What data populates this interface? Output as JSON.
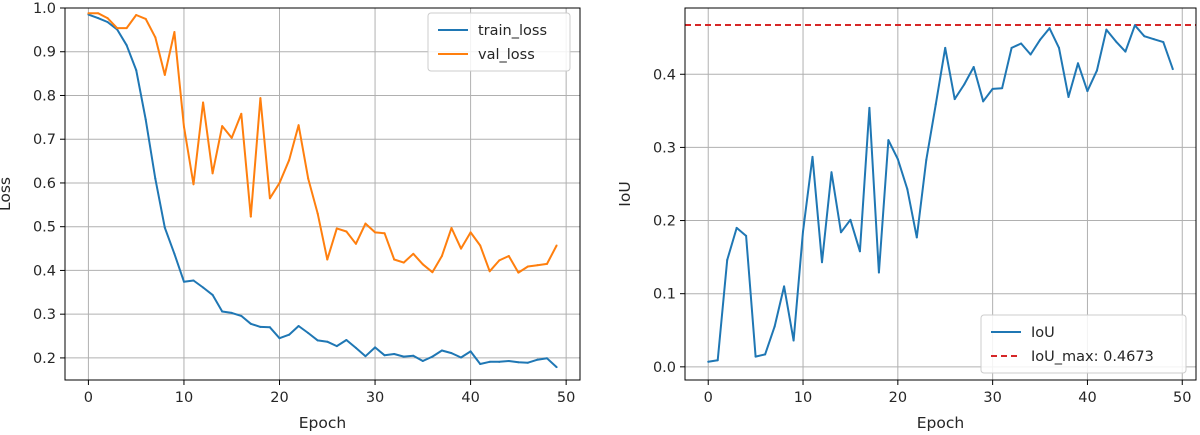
{
  "chart_data": [
    {
      "type": "line",
      "xlabel": "Epoch",
      "ylabel": "Loss",
      "xlim": [
        -2.45,
        51.45
      ],
      "ylim": [
        0.1495,
        1.0
      ],
      "xticks": [
        0,
        10,
        20,
        30,
        40,
        50
      ],
      "yticks": [
        0.2,
        0.3,
        0.4,
        0.5,
        0.6,
        0.7,
        0.8,
        0.9,
        1.0
      ],
      "xtick_labels": [
        "0",
        "10",
        "20",
        "30",
        "40",
        "50"
      ],
      "ytick_labels": [
        "0.2",
        "0.3",
        "0.4",
        "0.5",
        "0.6",
        "0.7",
        "0.8",
        "0.9",
        "1.0"
      ],
      "grid": true,
      "legend_position": "top-right",
      "x": [
        0,
        1,
        2,
        3,
        4,
        5,
        6,
        7,
        8,
        9,
        10,
        11,
        12,
        13,
        14,
        15,
        16,
        17,
        18,
        19,
        20,
        21,
        22,
        23,
        24,
        25,
        26,
        27,
        28,
        29,
        30,
        31,
        32,
        33,
        34,
        35,
        36,
        37,
        38,
        39,
        40,
        41,
        42,
        43,
        44,
        45,
        46,
        47,
        48,
        49
      ],
      "series": [
        {
          "name": "train_loss",
          "color": "#1f77b4",
          "values": [
            0.985,
            0.977,
            0.968,
            0.951,
            0.915,
            0.858,
            0.745,
            0.61,
            0.498,
            0.438,
            0.374,
            0.377,
            0.361,
            0.344,
            0.306,
            0.303,
            0.296,
            0.278,
            0.271,
            0.27,
            0.245,
            0.253,
            0.273,
            0.257,
            0.24,
            0.237,
            0.227,
            0.241,
            0.223,
            0.204,
            0.224,
            0.206,
            0.209,
            0.203,
            0.205,
            0.193,
            0.203,
            0.217,
            0.211,
            0.201,
            0.215,
            0.186,
            0.191,
            0.191,
            0.193,
            0.19,
            0.189,
            0.196,
            0.199,
            0.179
          ]
        },
        {
          "name": "val_loss",
          "color": "#ff7f0e",
          "values": [
            0.988,
            0.988,
            0.977,
            0.954,
            0.954,
            0.984,
            0.975,
            0.933,
            0.847,
            0.945,
            0.728,
            0.597,
            0.784,
            0.622,
            0.73,
            0.703,
            0.758,
            0.523,
            0.794,
            0.565,
            0.6,
            0.652,
            0.732,
            0.61,
            0.53,
            0.425,
            0.496,
            0.489,
            0.461,
            0.507,
            0.487,
            0.485,
            0.425,
            0.418,
            0.438,
            0.414,
            0.396,
            0.433,
            0.497,
            0.45,
            0.487,
            0.457,
            0.398,
            0.423,
            0.433,
            0.395,
            0.409,
            0.412,
            0.415,
            0.457
          ]
        }
      ]
    },
    {
      "type": "line",
      "xlabel": "Epoch",
      "ylabel": "IoU",
      "xlim": [
        -2.45,
        51.45
      ],
      "ylim": [
        -0.018,
        0.4906
      ],
      "xticks": [
        0,
        10,
        20,
        30,
        40,
        50
      ],
      "yticks": [
        0.0,
        0.1,
        0.2,
        0.3,
        0.4
      ],
      "xtick_labels": [
        "0",
        "10",
        "20",
        "30",
        "40",
        "50"
      ],
      "ytick_labels": [
        "0.0",
        "0.1",
        "0.2",
        "0.3",
        "0.4"
      ],
      "grid": true,
      "legend_position": "bottom-right",
      "x": [
        0,
        1,
        2,
        3,
        4,
        5,
        6,
        7,
        8,
        9,
        10,
        11,
        12,
        13,
        14,
        15,
        16,
        17,
        18,
        19,
        20,
        21,
        22,
        23,
        24,
        25,
        26,
        27,
        28,
        29,
        30,
        31,
        32,
        33,
        34,
        35,
        36,
        37,
        38,
        39,
        40,
        41,
        42,
        43,
        44,
        45,
        46,
        47,
        48,
        49
      ],
      "series": [
        {
          "name": "IoU",
          "color": "#1f77b4",
          "values": [
            0.007,
            0.009,
            0.146,
            0.19,
            0.179,
            0.014,
            0.017,
            0.055,
            0.11,
            0.036,
            0.185,
            0.287,
            0.143,
            0.266,
            0.184,
            0.201,
            0.158,
            0.354,
            0.129,
            0.31,
            0.284,
            0.243,
            0.177,
            0.283,
            0.359,
            0.436,
            0.366,
            0.386,
            0.41,
            0.363,
            0.38,
            0.381,
            0.436,
            0.442,
            0.427,
            0.447,
            0.463,
            0.436,
            0.369,
            0.415,
            0.377,
            0.405,
            0.461,
            0.445,
            0.431,
            0.467,
            0.452,
            0.448,
            0.444,
            0.407
          ]
        }
      ],
      "reference_line": {
        "name": "IoU_max: 0.4673",
        "value": 0.4673,
        "color": "#d62728",
        "style": "dashed"
      }
    }
  ]
}
